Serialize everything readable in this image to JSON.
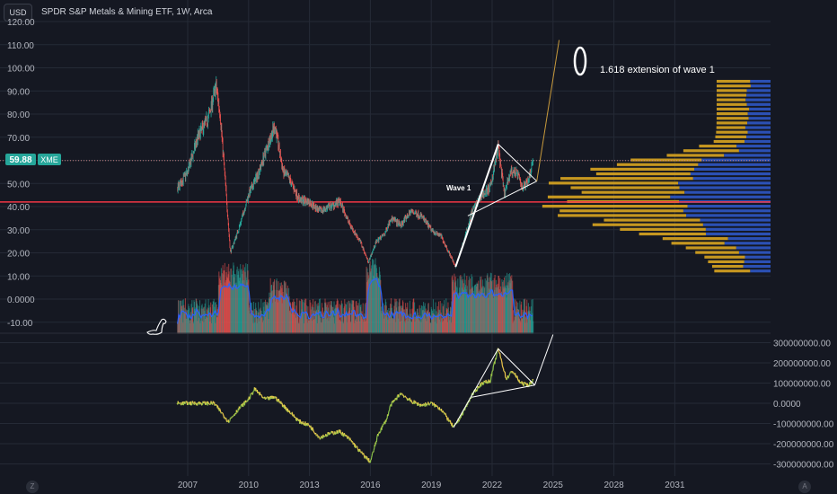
{
  "header": {
    "currency": "USD",
    "title": "SPDR S&P Metals & Mining ETF, 1W, Arca"
  },
  "price_badge": {
    "value": "59.88",
    "ticker": "XME"
  },
  "annotations": {
    "wave1_label": "Wave 1",
    "extension_label": "1.618 extension of wave 1"
  },
  "footer": {
    "left_icon": "Z",
    "right_icon": "A"
  },
  "colors": {
    "background": "#151822",
    "grid": "#252a36",
    "axis_text": "#b2b5be",
    "candle_up": "#26a69a",
    "candle_down": "#ef5350",
    "support_line": "#f23645",
    "volume_ma": "#2962ff",
    "vp_up": "#d9a520",
    "vp_down": "#2d56c4",
    "indicator_up": "#8bc34a",
    "indicator_down": "#f2c94c",
    "projection": "#c89a3c",
    "drawing": "#ffffff"
  },
  "chart_data": [
    {
      "type": "candlestick",
      "name": "price",
      "ticker": "XME",
      "timeframe": "1W",
      "x_ticks": [
        "2007",
        "2010",
        "2013",
        "2016",
        "2019",
        "2022",
        "2025",
        "2028",
        "2031"
      ],
      "y_ticks": [
        "120.00",
        "110.00",
        "100.00",
        "90.00",
        "80.00",
        "70.00",
        "60.00",
        "50.00",
        "40.00",
        "30.00",
        "20.00",
        "10.00",
        "0.0000",
        "-10.00"
      ],
      "ylim": [
        -15,
        123
      ],
      "last_price": 59.88,
      "support_level": 42,
      "approx_closes": [
        {
          "x": 2006.5,
          "y": 48
        },
        {
          "x": 2007.0,
          "y": 55
        },
        {
          "x": 2007.5,
          "y": 70
        },
        {
          "x": 2008.0,
          "y": 78
        },
        {
          "x": 2008.4,
          "y": 92
        },
        {
          "x": 2008.6,
          "y": 80
        },
        {
          "x": 2008.9,
          "y": 45
        },
        {
          "x": 2009.1,
          "y": 20
        },
        {
          "x": 2009.5,
          "y": 30
        },
        {
          "x": 2010.0,
          "y": 45
        },
        {
          "x": 2010.5,
          "y": 55
        },
        {
          "x": 2011.0,
          "y": 68
        },
        {
          "x": 2011.3,
          "y": 75
        },
        {
          "x": 2011.7,
          "y": 55
        },
        {
          "x": 2012.0,
          "y": 52
        },
        {
          "x": 2012.5,
          "y": 43
        },
        {
          "x": 2013.0,
          "y": 42
        },
        {
          "x": 2013.5,
          "y": 38
        },
        {
          "x": 2014.0,
          "y": 40
        },
        {
          "x": 2014.5,
          "y": 42
        },
        {
          "x": 2015.0,
          "y": 32
        },
        {
          "x": 2015.5,
          "y": 25
        },
        {
          "x": 2015.9,
          "y": 16
        },
        {
          "x": 2016.3,
          "y": 25
        },
        {
          "x": 2016.7,
          "y": 28
        },
        {
          "x": 2017.0,
          "y": 35
        },
        {
          "x": 2017.5,
          "y": 32
        },
        {
          "x": 2018.0,
          "y": 38
        },
        {
          "x": 2018.5,
          "y": 36
        },
        {
          "x": 2019.0,
          "y": 30
        },
        {
          "x": 2019.5,
          "y": 27
        },
        {
          "x": 2020.2,
          "y": 14
        },
        {
          "x": 2020.6,
          "y": 25
        },
        {
          "x": 2021.0,
          "y": 38
        },
        {
          "x": 2021.5,
          "y": 45
        },
        {
          "x": 2021.9,
          "y": 48
        },
        {
          "x": 2022.3,
          "y": 66
        },
        {
          "x": 2022.6,
          "y": 45
        },
        {
          "x": 2022.9,
          "y": 55
        },
        {
          "x": 2023.2,
          "y": 55
        },
        {
          "x": 2023.5,
          "y": 48
        },
        {
          "x": 2023.8,
          "y": 52
        },
        {
          "x": 2024.0,
          "y": 59.88
        }
      ],
      "wave1_line": [
        {
          "x": 2020.2,
          "y": 14
        },
        {
          "x": 2022.3,
          "y": 67
        }
      ],
      "triangle_upper": [
        {
          "x": 2022.3,
          "y": 67
        },
        {
          "x": 2024.2,
          "y": 51
        }
      ],
      "triangle_lower": [
        {
          "x": 2020.8,
          "y": 36
        },
        {
          "x": 2024.2,
          "y": 51
        }
      ],
      "projection_line": [
        {
          "x": 2024.2,
          "y": 51
        },
        {
          "x": 2025.3,
          "y": 112
        }
      ]
    },
    {
      "type": "line",
      "name": "cumulative indicator",
      "y_ticks": [
        "300000000.00",
        "200000000.00",
        "100000000.00",
        "0.0000",
        "-100000000.00",
        "-200000000.00",
        "-300000000.00"
      ],
      "ylim": [
        -340000000,
        340000000
      ],
      "approx_values": [
        {
          "x": 2006.5,
          "y": 0
        },
        {
          "x": 2007.5,
          "y": 0
        },
        {
          "x": 2008.3,
          "y": 0
        },
        {
          "x": 2008.7,
          "y": -50000000
        },
        {
          "x": 2009.0,
          "y": -90000000
        },
        {
          "x": 2009.5,
          "y": -30000000
        },
        {
          "x": 2010.0,
          "y": 20000000
        },
        {
          "x": 2010.3,
          "y": 70000000
        },
        {
          "x": 2010.8,
          "y": 20000000
        },
        {
          "x": 2011.3,
          "y": 30000000
        },
        {
          "x": 2012.0,
          "y": -40000000
        },
        {
          "x": 2012.5,
          "y": -90000000
        },
        {
          "x": 2013.0,
          "y": -110000000
        },
        {
          "x": 2013.5,
          "y": -170000000
        },
        {
          "x": 2014.0,
          "y": -150000000
        },
        {
          "x": 2014.5,
          "y": -140000000
        },
        {
          "x": 2015.0,
          "y": -180000000
        },
        {
          "x": 2015.5,
          "y": -240000000
        },
        {
          "x": 2016.0,
          "y": -290000000
        },
        {
          "x": 2016.4,
          "y": -150000000
        },
        {
          "x": 2016.8,
          "y": -80000000
        },
        {
          "x": 2017.0,
          "y": -10000000
        },
        {
          "x": 2017.5,
          "y": 50000000
        },
        {
          "x": 2018.0,
          "y": 10000000
        },
        {
          "x": 2018.5,
          "y": -10000000
        },
        {
          "x": 2019.0,
          "y": 0
        },
        {
          "x": 2019.5,
          "y": -30000000
        },
        {
          "x": 2020.1,
          "y": -120000000
        },
        {
          "x": 2020.5,
          "y": -60000000
        },
        {
          "x": 2021.0,
          "y": 40000000
        },
        {
          "x": 2021.5,
          "y": 100000000
        },
        {
          "x": 2021.9,
          "y": 110000000
        },
        {
          "x": 2022.3,
          "y": 270000000
        },
        {
          "x": 2022.7,
          "y": 120000000
        },
        {
          "x": 2023.0,
          "y": 160000000
        },
        {
          "x": 2023.4,
          "y": 100000000
        },
        {
          "x": 2023.8,
          "y": 90000000
        },
        {
          "x": 2024.0,
          "y": 110000000
        }
      ],
      "wave_line": [
        {
          "x": 2020.1,
          "y": -120000000
        },
        {
          "x": 2022.3,
          "y": 270000000
        }
      ],
      "triangle_upper": [
        {
          "x": 2022.3,
          "y": 270000000
        },
        {
          "x": 2024.1,
          "y": 90000000
        }
      ],
      "triangle_lower": [
        {
          "x": 2021.0,
          "y": 30000000
        },
        {
          "x": 2024.1,
          "y": 90000000
        }
      ],
      "projection_line": [
        {
          "x": 2024.1,
          "y": 90000000
        },
        {
          "x": 2025.0,
          "y": 340000000
        }
      ]
    }
  ]
}
